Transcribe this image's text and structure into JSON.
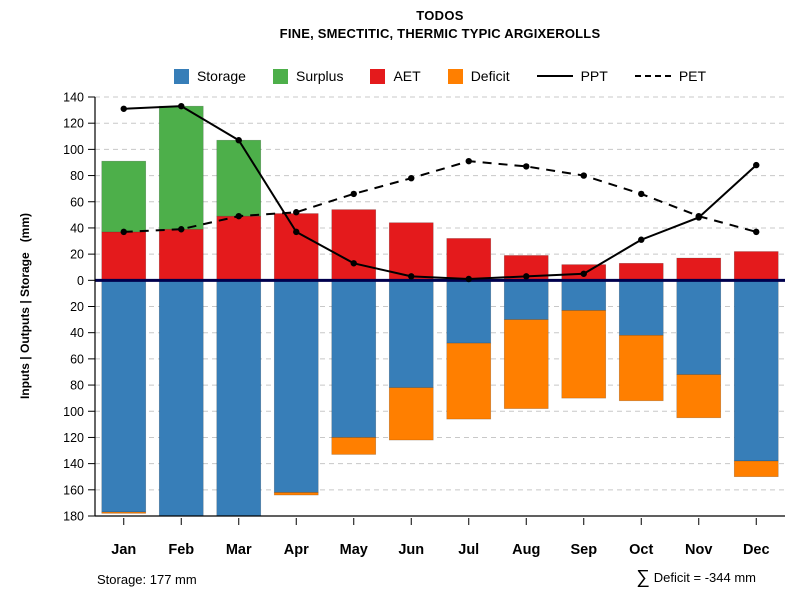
{
  "title": "TODOS",
  "subtitle": "FINE, SMECTITIC, THERMIC TYPIC ARGIXEROLLS",
  "y_axis_label": "Inputs | Outputs | Storage   (mm)",
  "footer": {
    "storage_note": "Storage: 177 mm",
    "deficit_sigma": "∑",
    "deficit_text": "Deficit = -344 mm"
  },
  "legend": [
    {
      "label": "Storage",
      "kind": "fill",
      "color": "#377eb8"
    },
    {
      "label": "Surplus",
      "kind": "fill",
      "color": "#4daf4a"
    },
    {
      "label": "AET",
      "kind": "fill",
      "color": "#e41a1c"
    },
    {
      "label": "Deficit",
      "kind": "fill",
      "color": "#ff7f00"
    },
    {
      "label": "PPT",
      "kind": "line",
      "style": "solid"
    },
    {
      "label": "PET",
      "kind": "line",
      "style": "dashed"
    }
  ],
  "chart_data": {
    "type": "bar",
    "title": "TODOS",
    "subtitle": "FINE, SMECTITIC, THERMIC TYPIC ARGIXEROLLS",
    "categories": [
      "Jan",
      "Feb",
      "Mar",
      "Apr",
      "May",
      "Jun",
      "Jul",
      "Aug",
      "Sep",
      "Oct",
      "Nov",
      "Dec"
    ],
    "ylim": [
      -180,
      140
    ],
    "ylim_up": 140,
    "ylim_down": 180,
    "grid": true,
    "legend_position": "top",
    "zero_line_color": "#00004d",
    "y_tick_labels_up": [
      0,
      20,
      40,
      60,
      80,
      100,
      120,
      140
    ],
    "y_tick_labels_down": [
      20,
      40,
      60,
      80,
      100,
      120,
      140,
      160,
      180
    ],
    "series": [
      {
        "name": "AET",
        "type": "bar",
        "direction": "up",
        "color": "#e41a1c",
        "values": [
          37,
          39,
          49,
          51,
          54,
          44,
          32,
          19,
          12,
          13,
          17,
          22
        ]
      },
      {
        "name": "Surplus",
        "type": "bar",
        "direction": "up",
        "stack_on": "AET",
        "color": "#4daf4a",
        "values": [
          54,
          94,
          58,
          0,
          0,
          0,
          0,
          0,
          0,
          0,
          0,
          0
        ]
      },
      {
        "name": "Storage",
        "type": "bar",
        "direction": "down",
        "color": "#377eb8",
        "values": [
          177,
          180,
          180,
          162,
          120,
          82,
          48,
          30,
          23,
          42,
          72,
          138
        ]
      },
      {
        "name": "Deficit",
        "type": "bar",
        "direction": "down",
        "stack_on": "Storage",
        "color": "#ff7f00",
        "values": [
          1,
          0,
          0,
          2,
          13,
          40,
          58,
          68,
          67,
          50,
          33,
          12
        ]
      },
      {
        "name": "PPT",
        "type": "line",
        "style": "solid",
        "color": "#000000",
        "values": [
          131,
          133,
          107,
          37,
          13,
          3,
          1,
          3,
          5,
          31,
          48,
          88
        ]
      },
      {
        "name": "PET",
        "type": "line",
        "style": "dashed",
        "color": "#000000",
        "values": [
          37,
          39,
          49,
          52,
          66,
          78,
          91,
          87,
          80,
          66,
          49,
          37
        ]
      }
    ]
  }
}
